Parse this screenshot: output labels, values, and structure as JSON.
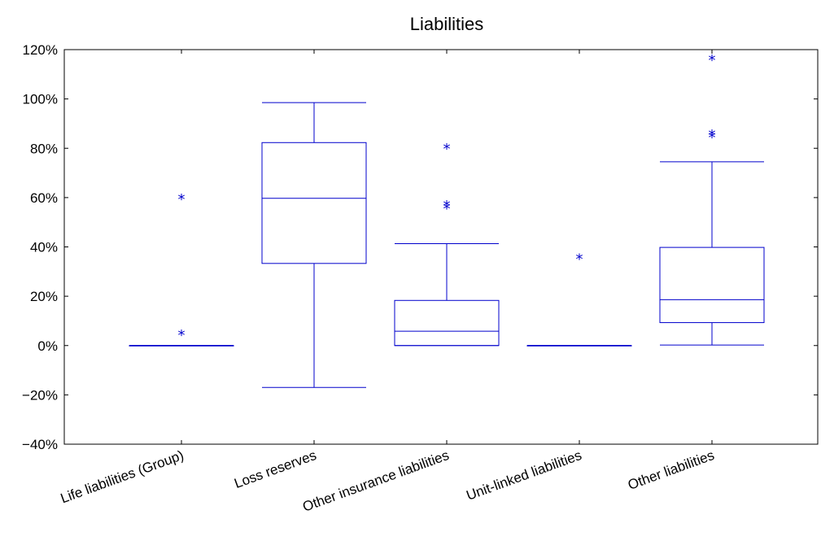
{
  "chart_data": {
    "type": "boxplot",
    "title": "Liabilities",
    "xlabel": "",
    "ylabel": "",
    "ylim": [
      -0.4,
      1.2
    ],
    "yticks": [
      -0.4,
      -0.2,
      0,
      0.2,
      0.4,
      0.6,
      0.8,
      1.0,
      1.2
    ],
    "ytick_labels": [
      "−40%",
      "−20%",
      "0%",
      "20%",
      "40%",
      "60%",
      "80%",
      "100%",
      "120%"
    ],
    "grid": false,
    "color": "#0000cc",
    "outlier_marker": "*",
    "categories": [
      "Life liabilities (Group)",
      "Loss reserves",
      "Other insurance liabilities",
      "Unit-linked liabilities",
      "Other liabilities"
    ],
    "boxes": [
      {
        "whisker_low": 0.0,
        "q1": 0.0,
        "median": 0.0,
        "q3": 0.0,
        "whisker_high": 0.0,
        "outliers": [
          0.055,
          0.607
        ]
      },
      {
        "whisker_low": -0.17,
        "q1": 0.333,
        "median": 0.597,
        "q3": 0.823,
        "whisker_high": 0.985,
        "outliers": []
      },
      {
        "whisker_low": 0.0,
        "q1": 0.0,
        "median": 0.058,
        "q3": 0.183,
        "whisker_high": 0.413,
        "outliers": [
          0.568,
          0.58,
          0.81
        ]
      },
      {
        "whisker_low": 0.0,
        "q1": 0.0,
        "median": 0.0,
        "q3": 0.0,
        "whisker_high": 0.0,
        "outliers": [
          0.363
        ]
      },
      {
        "whisker_low": 0.002,
        "q1": 0.093,
        "median": 0.186,
        "q3": 0.398,
        "whisker_high": 0.745,
        "outliers": [
          0.857,
          0.867,
          1.17
        ]
      }
    ]
  }
}
